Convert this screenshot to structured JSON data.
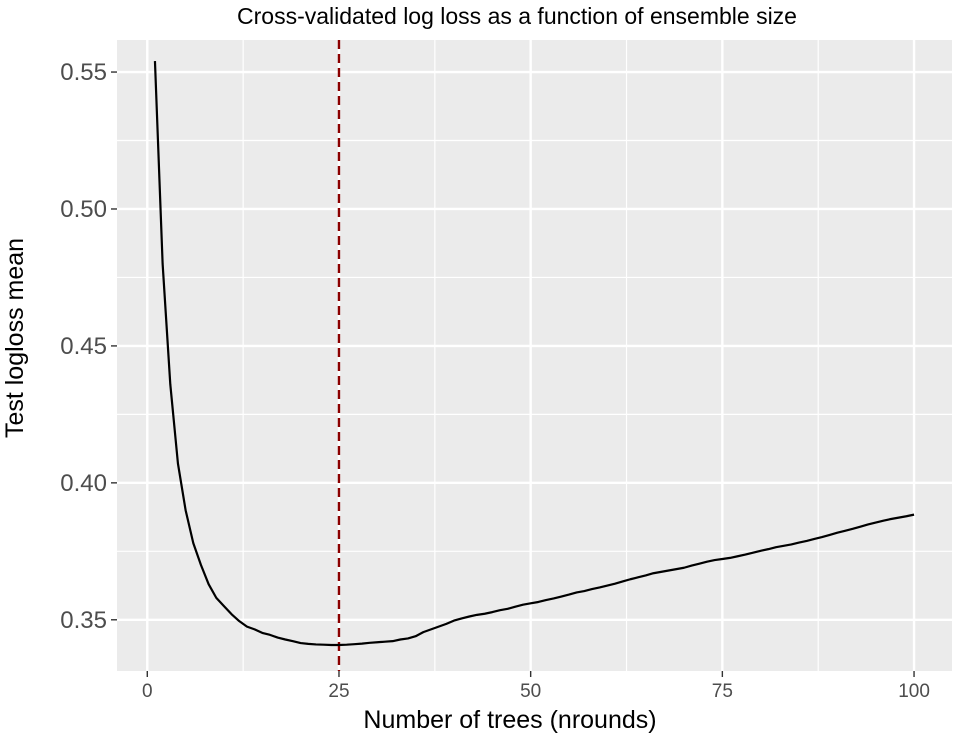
{
  "chart_data": {
    "type": "line",
    "title": "Cross-validated log loss as a function of ensemble size",
    "xlabel": "Number of trees (nrounds)",
    "ylabel": "Test logloss mean",
    "xlim": [
      -3.95,
      104.95
    ],
    "ylim": [
      0.3313,
      0.5617
    ],
    "x_ticks": [
      0,
      25,
      50,
      75,
      100
    ],
    "x_tick_labels": [
      "0",
      "25",
      "50",
      "75",
      "100"
    ],
    "y_ticks": [
      0.35,
      0.4,
      0.45,
      0.5,
      0.55
    ],
    "y_tick_labels": [
      "0.35",
      "0.40",
      "0.45",
      "0.50",
      "0.55"
    ],
    "grid": true,
    "background": "#ebebeb",
    "gridline_color": "#ffffff",
    "series": [
      {
        "color": "#000000",
        "x": [
          1,
          2,
          3,
          4,
          5,
          6,
          7,
          8,
          9,
          10,
          11,
          12,
          13,
          14,
          15,
          16,
          17,
          18,
          19,
          20,
          21,
          22,
          23,
          24,
          25,
          26,
          27,
          28,
          29,
          30,
          31,
          32,
          33,
          34,
          35,
          36,
          37,
          38,
          39,
          40,
          41,
          42,
          43,
          44,
          45,
          46,
          47,
          48,
          49,
          50,
          51,
          52,
          53,
          54,
          55,
          56,
          57,
          58,
          59,
          60,
          61,
          62,
          63,
          64,
          65,
          66,
          67,
          68,
          69,
          70,
          71,
          72,
          73,
          74,
          75,
          76,
          77,
          78,
          79,
          80,
          81,
          82,
          83,
          84,
          85,
          86,
          87,
          88,
          89,
          90,
          91,
          92,
          93,
          94,
          95,
          96,
          97,
          98,
          99,
          100
        ],
        "y": [
          0.554,
          0.48,
          0.436,
          0.407,
          0.39,
          0.378,
          0.37,
          0.363,
          0.358,
          0.355,
          0.352,
          0.3495,
          0.3475,
          0.3465,
          0.3452,
          0.3445,
          0.3435,
          0.3428,
          0.3422,
          0.3415,
          0.3412,
          0.341,
          0.3409,
          0.3408,
          0.3408,
          0.3409,
          0.3411,
          0.3413,
          0.3416,
          0.3418,
          0.342,
          0.3422,
          0.3428,
          0.3432,
          0.344,
          0.3455,
          0.3465,
          0.3475,
          0.3485,
          0.3497,
          0.3505,
          0.3512,
          0.3518,
          0.3522,
          0.3528,
          0.3535,
          0.354,
          0.3548,
          0.3555,
          0.356,
          0.3565,
          0.3572,
          0.3578,
          0.3585,
          0.3592,
          0.36,
          0.3605,
          0.3612,
          0.3618,
          0.3625,
          0.3632,
          0.364,
          0.3648,
          0.3655,
          0.3662,
          0.367,
          0.3675,
          0.368,
          0.3685,
          0.369,
          0.3698,
          0.3705,
          0.3712,
          0.3718,
          0.3722,
          0.3726,
          0.3732,
          0.3738,
          0.3745,
          0.3752,
          0.3758,
          0.3765,
          0.377,
          0.3775,
          0.3782,
          0.3788,
          0.3795,
          0.3802,
          0.381,
          0.3818,
          0.3825,
          0.3832,
          0.384,
          0.3848,
          0.3855,
          0.3862,
          0.3868,
          0.3873,
          0.3878,
          0.3884
        ]
      }
    ],
    "annotations": [
      {
        "type": "vline",
        "x": 25,
        "color": "#8b0000",
        "linestyle": "dashed"
      }
    ]
  }
}
